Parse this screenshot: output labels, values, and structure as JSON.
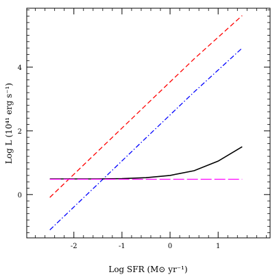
{
  "chart_data": {
    "type": "line",
    "xlabel": "Log SFR (M⊙ yr⁻¹)",
    "ylabel": "Log L (10⁴¹ erg s⁻¹)",
    "xlim": [
      -2.98,
      2.08
    ],
    "ylim": [
      -1.36,
      5.85
    ],
    "xticks": [
      -2,
      -1,
      0,
      1
    ],
    "yticks": [
      0,
      2,
      4
    ],
    "x_minor_step": 0.2,
    "y_minor_step": 0.2,
    "grid": false,
    "legend": "none",
    "series": [
      {
        "color": "#ff0000",
        "style": "dashed",
        "points": [
          [
            -2.5,
            -0.09
          ],
          [
            -1.5,
            1.36
          ],
          [
            -0.5,
            2.81
          ],
          [
            0.5,
            4.26
          ],
          [
            1.5,
            5.62
          ]
        ]
      },
      {
        "color": "#0000ff",
        "style": "dash-dot",
        "points": [
          [
            -2.5,
            -1.11
          ],
          [
            -1.5,
            0.33
          ],
          [
            -0.5,
            1.78
          ],
          [
            0.5,
            3.22
          ],
          [
            1.5,
            4.6
          ]
        ]
      },
      {
        "color": "#000000",
        "style": "solid",
        "points": [
          [
            -2.5,
            0.49
          ],
          [
            -2.0,
            0.49
          ],
          [
            -1.5,
            0.49
          ],
          [
            -1.0,
            0.5
          ],
          [
            -0.5,
            0.53
          ],
          [
            0.0,
            0.6
          ],
          [
            0.5,
            0.75
          ],
          [
            1.0,
            1.05
          ],
          [
            1.5,
            1.5
          ]
        ]
      },
      {
        "color": "#ff00ff",
        "style": "long-dash",
        "points": [
          [
            -2.5,
            0.48
          ],
          [
            1.5,
            0.48
          ]
        ]
      }
    ]
  }
}
